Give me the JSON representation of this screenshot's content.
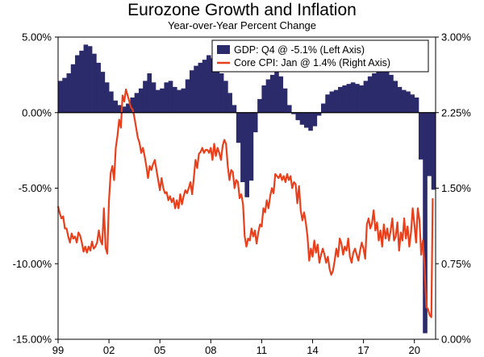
{
  "chart_data": {
    "type": "bar+line",
    "title": "Eurozone Growth and Inflation",
    "subtitle": "Year-over-Year Percent Change",
    "x_tick_labels": [
      "99",
      "02",
      "05",
      "08",
      "11",
      "14",
      "17",
      "20"
    ],
    "x_tick_years": [
      1999,
      2002,
      2005,
      2008,
      2011,
      2014,
      2017,
      2020
    ],
    "x_range": [
      1999.0,
      2021.25
    ],
    "left_axis": {
      "range": [
        -15,
        5
      ],
      "ticks": [
        5,
        0,
        -5,
        -10,
        -15
      ],
      "tick_labels": [
        "5.00%",
        "0.00%",
        "-5.00%",
        "-10.00%",
        "-15.00%"
      ]
    },
    "right_axis": {
      "range": [
        0,
        3
      ],
      "ticks": [
        3,
        2.25,
        1.5,
        0.75,
        0
      ],
      "tick_labels": [
        "3.00%",
        "2.25%",
        "1.50%",
        "0.75%",
        "0.00%"
      ]
    },
    "legend_placement": "top-right",
    "series": [
      {
        "name": "GDP: Q4 @ -5.1% (Left Axis)",
        "type": "bar",
        "axis": "left",
        "color": "#2b2a6b",
        "start": 1999.0,
        "step": 0.25,
        "values": [
          2.1,
          2.3,
          2.6,
          3.2,
          3.8,
          4.1,
          4.5,
          4.4,
          3.9,
          3.3,
          2.7,
          2.0,
          1.4,
          0.8,
          0.5,
          0.4,
          0.6,
          1.0,
          1.3,
          1.6,
          2.1,
          2.6,
          2.0,
          1.5,
          1.6,
          2.0,
          2.1,
          1.7,
          1.5,
          1.6,
          2.2,
          2.8,
          3.1,
          3.3,
          3.5,
          3.8,
          3.6,
          3.3,
          2.6,
          2.1,
          1.3,
          0.5,
          -2.0,
          -4.6,
          -5.6,
          -4.5,
          -1.3,
          0.9,
          1.8,
          2.2,
          2.5,
          2.9,
          2.4,
          1.6,
          0.5,
          -0.1,
          -0.5,
          -0.8,
          -1.0,
          -1.2,
          -0.9,
          -0.2,
          0.6,
          1.2,
          1.4,
          1.5,
          1.7,
          1.8,
          1.9,
          2.0,
          1.9,
          1.8,
          2.1,
          2.4,
          2.6,
          2.8,
          2.9,
          2.9,
          2.5,
          2.1,
          1.7,
          1.5,
          1.4,
          1.2,
          1.0,
          -3.1,
          -14.6,
          -4.2,
          -5.1
        ]
      },
      {
        "name": "Core CPI: Jan @ 1.4% (Right Axis)",
        "type": "line",
        "axis": "right",
        "color": "#e8401c",
        "points": [
          [
            1999.0,
            1.32
          ],
          [
            1999.1,
            1.25
          ],
          [
            1999.2,
            1.2
          ],
          [
            1999.3,
            1.22
          ],
          [
            1999.4,
            1.1
          ],
          [
            1999.5,
            1.1
          ],
          [
            1999.6,
            1.02
          ],
          [
            1999.7,
            0.96
          ],
          [
            1999.8,
            1.05
          ],
          [
            1999.9,
            1.0
          ],
          [
            2000.0,
            1.02
          ],
          [
            2000.1,
            0.96
          ],
          [
            2000.2,
            1.06
          ],
          [
            2000.3,
            1.03
          ],
          [
            2000.4,
            0.96
          ],
          [
            2000.5,
            0.87
          ],
          [
            2000.6,
            0.92
          ],
          [
            2000.7,
            0.86
          ],
          [
            2000.8,
            0.92
          ],
          [
            2000.9,
            0.88
          ],
          [
            2001.0,
            0.97
          ],
          [
            2001.1,
            0.9
          ],
          [
            2001.2,
            0.92
          ],
          [
            2001.3,
            0.96
          ],
          [
            2001.4,
            1.08
          ],
          [
            2001.5,
            0.98
          ],
          [
            2001.6,
            0.94
          ],
          [
            2001.7,
            1.3
          ],
          [
            2001.8,
            0.91
          ],
          [
            2001.9,
            0.85
          ],
          [
            2002.0,
            1.38
          ],
          [
            2002.1,
            1.65
          ],
          [
            2002.2,
            1.72
          ],
          [
            2002.3,
            1.58
          ],
          [
            2002.4,
            1.9
          ],
          [
            2002.5,
            2.02
          ],
          [
            2002.6,
            2.18
          ],
          [
            2002.7,
            2.1
          ],
          [
            2002.8,
            2.42
          ],
          [
            2002.9,
            2.36
          ],
          [
            2003.0,
            2.48
          ],
          [
            2003.1,
            2.42
          ],
          [
            2003.2,
            2.36
          ],
          [
            2003.3,
            2.3
          ],
          [
            2003.4,
            2.28
          ],
          [
            2003.5,
            2.2
          ],
          [
            2003.6,
            2.1
          ],
          [
            2003.7,
            2.0
          ],
          [
            2003.8,
            1.95
          ],
          [
            2003.9,
            1.85
          ],
          [
            2004.0,
            1.9
          ],
          [
            2004.1,
            1.82
          ],
          [
            2004.2,
            1.72
          ],
          [
            2004.3,
            1.6
          ],
          [
            2004.4,
            1.72
          ],
          [
            2004.5,
            1.68
          ],
          [
            2004.6,
            1.74
          ],
          [
            2004.7,
            1.78
          ],
          [
            2004.8,
            1.68
          ],
          [
            2004.9,
            1.58
          ],
          [
            2005.0,
            1.48
          ],
          [
            2005.1,
            1.6
          ],
          [
            2005.2,
            1.5
          ],
          [
            2005.3,
            1.45
          ],
          [
            2005.4,
            1.46
          ],
          [
            2005.5,
            1.38
          ],
          [
            2005.6,
            1.42
          ],
          [
            2005.7,
            1.36
          ],
          [
            2005.8,
            1.4
          ],
          [
            2005.9,
            1.3
          ],
          [
            2006.0,
            1.38
          ],
          [
            2006.1,
            1.3
          ],
          [
            2006.2,
            1.44
          ],
          [
            2006.3,
            1.34
          ],
          [
            2006.4,
            1.42
          ],
          [
            2006.5,
            1.48
          ],
          [
            2006.6,
            1.45
          ],
          [
            2006.7,
            1.5
          ],
          [
            2006.8,
            1.56
          ],
          [
            2006.9,
            1.44
          ],
          [
            2007.0,
            1.6
          ],
          [
            2007.1,
            1.78
          ],
          [
            2007.2,
            1.7
          ],
          [
            2007.3,
            1.84
          ],
          [
            2007.4,
            1.86
          ],
          [
            2007.5,
            1.9
          ],
          [
            2007.6,
            1.85
          ],
          [
            2007.7,
            1.88
          ],
          [
            2007.8,
            1.88
          ],
          [
            2007.9,
            1.85
          ],
          [
            2008.0,
            1.9
          ],
          [
            2008.1,
            1.78
          ],
          [
            2008.2,
            1.94
          ],
          [
            2008.3,
            1.82
          ],
          [
            2008.4,
            1.9
          ],
          [
            2008.5,
            1.85
          ],
          [
            2008.6,
            1.78
          ],
          [
            2008.7,
            1.92
          ],
          [
            2008.8,
            1.98
          ],
          [
            2008.9,
            1.94
          ],
          [
            2009.0,
            1.72
          ],
          [
            2009.1,
            1.58
          ],
          [
            2009.2,
            1.68
          ],
          [
            2009.3,
            1.66
          ],
          [
            2009.4,
            1.5
          ],
          [
            2009.5,
            1.58
          ],
          [
            2009.6,
            1.56
          ],
          [
            2009.7,
            1.4
          ],
          [
            2009.8,
            1.44
          ],
          [
            2009.9,
            1.34
          ],
          [
            2010.0,
            1.02
          ],
          [
            2010.1,
            0.92
          ],
          [
            2010.2,
            1.0
          ],
          [
            2010.3,
            0.98
          ],
          [
            2010.4,
            1.1
          ],
          [
            2010.5,
            1.02
          ],
          [
            2010.6,
            1.08
          ],
          [
            2010.7,
            0.95
          ],
          [
            2010.8,
            1.06
          ],
          [
            2010.9,
            1.14
          ],
          [
            2011.0,
            1.12
          ],
          [
            2011.1,
            1.3
          ],
          [
            2011.2,
            1.26
          ],
          [
            2011.3,
            1.38
          ],
          [
            2011.4,
            1.3
          ],
          [
            2011.5,
            1.42
          ],
          [
            2011.6,
            1.5
          ],
          [
            2011.7,
            1.45
          ],
          [
            2011.8,
            1.64
          ],
          [
            2011.9,
            1.62
          ],
          [
            2012.0,
            1.6
          ],
          [
            2012.1,
            1.64
          ],
          [
            2012.2,
            1.58
          ],
          [
            2012.3,
            1.62
          ],
          [
            2012.4,
            1.56
          ],
          [
            2012.5,
            1.64
          ],
          [
            2012.6,
            1.58
          ],
          [
            2012.7,
            1.62
          ],
          [
            2012.8,
            1.5
          ],
          [
            2012.9,
            1.56
          ],
          [
            2013.0,
            1.54
          ],
          [
            2013.1,
            1.35
          ],
          [
            2013.2,
            1.52
          ],
          [
            2013.3,
            1.28
          ],
          [
            2013.4,
            1.18
          ],
          [
            2013.5,
            1.26
          ],
          [
            2013.6,
            1.16
          ],
          [
            2013.7,
            1.02
          ],
          [
            2013.8,
            0.78
          ],
          [
            2013.9,
            0.9
          ],
          [
            2014.0,
            0.82
          ],
          [
            2014.1,
            0.98
          ],
          [
            2014.2,
            0.86
          ],
          [
            2014.3,
            0.94
          ],
          [
            2014.4,
            0.76
          ],
          [
            2014.5,
            0.84
          ],
          [
            2014.6,
            0.9
          ],
          [
            2014.7,
            0.84
          ],
          [
            2014.8,
            0.76
          ],
          [
            2014.9,
            0.82
          ],
          [
            2015.0,
            0.7
          ],
          [
            2015.1,
            0.64
          ],
          [
            2015.2,
            0.68
          ],
          [
            2015.3,
            0.78
          ],
          [
            2015.4,
            0.9
          ],
          [
            2015.5,
            0.82
          ],
          [
            2015.6,
            1.0
          ],
          [
            2015.7,
            0.95
          ],
          [
            2015.8,
            0.84
          ],
          [
            2015.9,
            0.92
          ],
          [
            2016.0,
            0.88
          ],
          [
            2016.1,
            1.0
          ],
          [
            2016.2,
            0.82
          ],
          [
            2016.3,
            0.76
          ],
          [
            2016.4,
            0.86
          ],
          [
            2016.5,
            0.9
          ],
          [
            2016.6,
            0.84
          ],
          [
            2016.7,
            0.78
          ],
          [
            2016.8,
            0.88
          ],
          [
            2016.9,
            0.96
          ],
          [
            2017.0,
            0.9
          ],
          [
            2017.1,
            0.8
          ],
          [
            2017.2,
            1.14
          ],
          [
            2017.3,
            1.2
          ],
          [
            2017.4,
            1.1
          ],
          [
            2017.5,
            1.15
          ],
          [
            2017.6,
            1.28
          ],
          [
            2017.7,
            1.08
          ],
          [
            2017.8,
            1.16
          ],
          [
            2017.9,
            0.98
          ],
          [
            2018.0,
            1.08
          ],
          [
            2018.1,
            0.92
          ],
          [
            2018.2,
            1.14
          ],
          [
            2018.3,
            1.0
          ],
          [
            2018.4,
            1.1
          ],
          [
            2018.5,
            0.98
          ],
          [
            2018.6,
            1.08
          ],
          [
            2018.7,
            1.2
          ],
          [
            2018.8,
            0.98
          ],
          [
            2018.9,
            1.02
          ],
          [
            2019.0,
            1.16
          ],
          [
            2019.1,
            0.88
          ],
          [
            2019.2,
            1.06
          ],
          [
            2019.3,
            0.98
          ],
          [
            2019.4,
            1.2
          ],
          [
            2019.5,
            1.0
          ],
          [
            2019.6,
            1.12
          ],
          [
            2019.7,
            0.92
          ],
          [
            2019.8,
            1.06
          ],
          [
            2019.9,
            1.3
          ],
          [
            2020.0,
            1.14
          ],
          [
            2020.1,
            0.96
          ],
          [
            2020.2,
            1.3
          ],
          [
            2020.3,
            1.18
          ],
          [
            2020.4,
            0.84
          ],
          [
            2020.5,
            0.98
          ],
          [
            2020.6,
            0.72
          ],
          [
            2020.7,
            0.32
          ],
          [
            2020.8,
            0.3
          ],
          [
            2020.9,
            0.24
          ],
          [
            2021.0,
            0.22
          ],
          [
            2021.08,
            1.4
          ]
        ]
      }
    ]
  }
}
